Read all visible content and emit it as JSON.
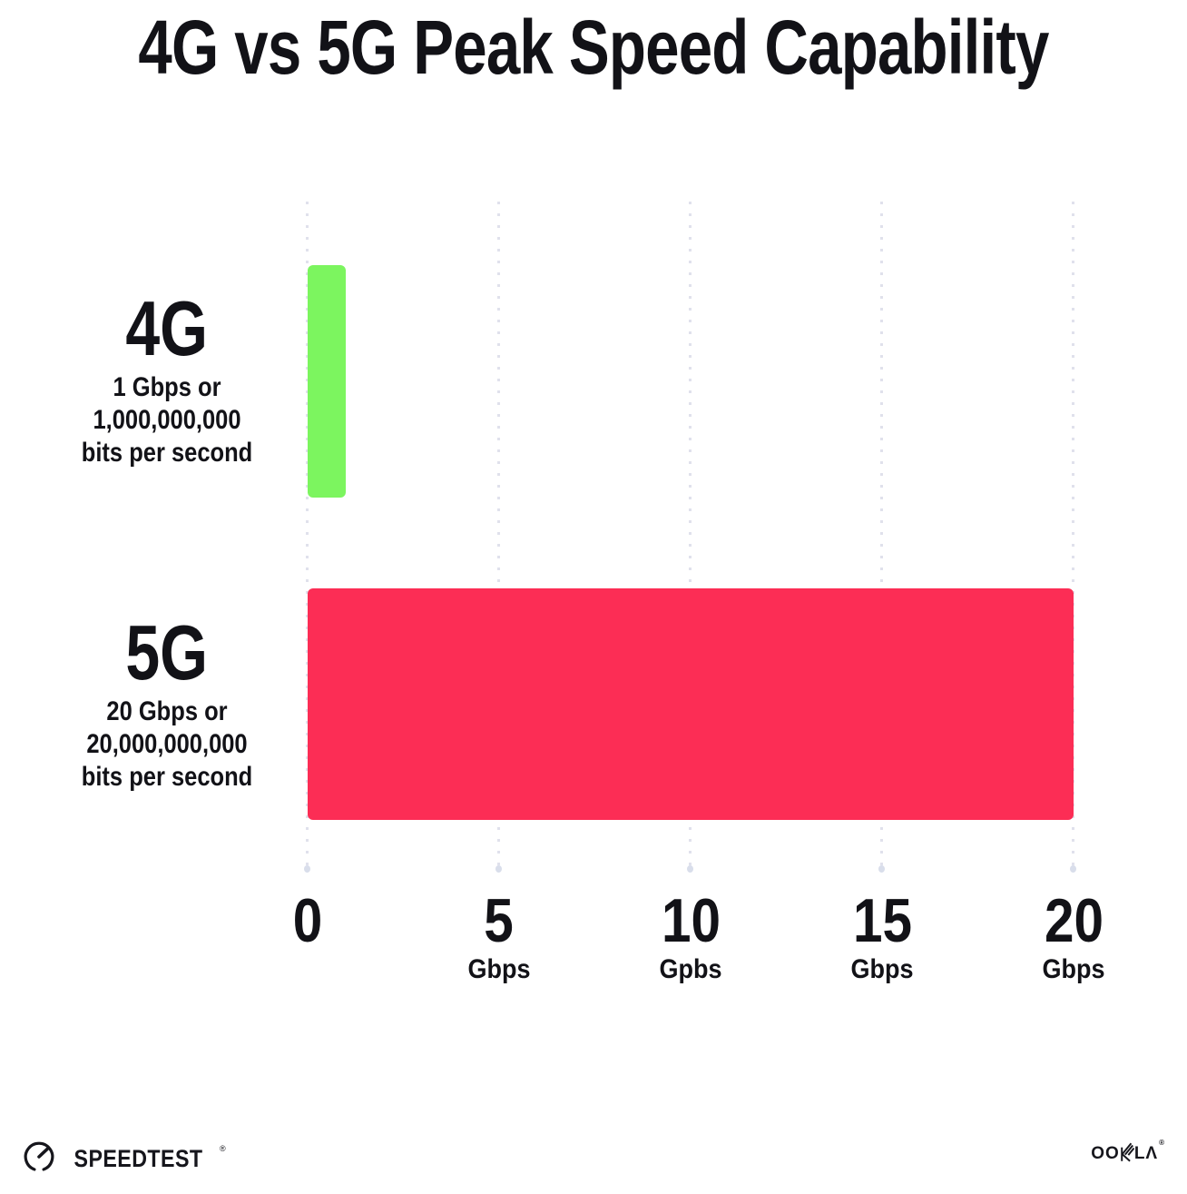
{
  "title": "4G vs 5G Peak Speed Capability",
  "chart_data": {
    "type": "bar",
    "orientation": "horizontal",
    "title": "4G vs 5G Peak Speed Capability",
    "categories": [
      "4G",
      "5G"
    ],
    "values": [
      1,
      20
    ],
    "value_unit": "Gbps",
    "xlim": [
      0,
      20
    ],
    "x_tick_values": [
      0,
      5,
      10,
      15,
      20
    ],
    "grid": "dotted-vertical-gridlines",
    "legend": "none",
    "bar_colors": [
      "#7CF55F",
      "#FC2D55"
    ],
    "annotations": [
      "4G: 1 Gbps or 1,000,000,000 bits per second",
      "5G: 20 Gbps or 20,000,000,000 bits per second"
    ]
  },
  "rows": [
    {
      "label": "4G",
      "sub_lines": [
        "1 Gbps or",
        "1,000,000,000",
        "bits per second"
      ]
    },
    {
      "label": "5G",
      "sub_lines": [
        "20 Gbps or",
        "20,000,000,000",
        "bits per second"
      ]
    }
  ],
  "x_ticks": [
    {
      "value": "0",
      "unit": ""
    },
    {
      "value": "5",
      "unit": "Gbps"
    },
    {
      "value": "10",
      "unit": "Gpbs"
    },
    {
      "value": "15",
      "unit": "Gbps"
    },
    {
      "value": "20",
      "unit": "Gbps"
    }
  ],
  "footer": {
    "speedtest_label": "SPEEDTEST",
    "speedtest_mark": "®",
    "ookla_prefix": "OO",
    "ookla_suffix": "LΛ",
    "ookla_mark": "®"
  },
  "colors": {
    "bar_4g": "#7CF55F",
    "bar_5g": "#FC2D55",
    "grid_dot": "#E0E1EC",
    "text": "#121217",
    "background": "#FFFFFF"
  }
}
